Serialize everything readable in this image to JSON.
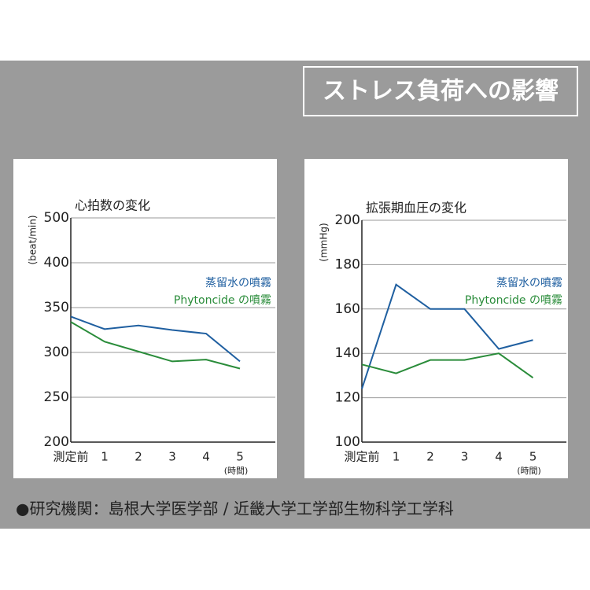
{
  "title": "ストレス負荷への影響",
  "footer": "●研究機関：島根大学医学部 / 近畿大学工学部生物科学工学科",
  "chart_data": [
    {
      "type": "line",
      "title": "心拍数の変化",
      "ylabel": "(beat/min)",
      "xlabel": "(時間)",
      "categories": [
        "測定前",
        "1",
        "2",
        "3",
        "4",
        "5"
      ],
      "ylim": [
        200,
        500
      ],
      "yticks": [
        200,
        250,
        300,
        350,
        400,
        500
      ],
      "grid": true,
      "legend": "upper right",
      "series": [
        {
          "name": "蒸留水の噴霧",
          "color": "#1f5fa0",
          "values": [
            340,
            326,
            330,
            325,
            321,
            290
          ]
        },
        {
          "name": "Phytoncide の噴霧",
          "color": "#2a8c3a",
          "values": [
            334,
            312,
            301,
            290,
            292,
            282
          ]
        }
      ]
    },
    {
      "type": "line",
      "title": "拡張期血圧の変化",
      "ylabel": "(mmHg)",
      "xlabel": "(時間)",
      "categories": [
        "測定前",
        "1",
        "2",
        "3",
        "4",
        "5"
      ],
      "ylim": [
        100,
        200
      ],
      "yticks": [
        100,
        120,
        140,
        160,
        180,
        200
      ],
      "grid": true,
      "legend": "upper right",
      "series": [
        {
          "name": "蒸留水の噴霧",
          "color": "#1f5fa0",
          "values": [
            124,
            171,
            160,
            160,
            142,
            146
          ]
        },
        {
          "name": "Phytoncide の噴霧",
          "color": "#2a8c3a",
          "values": [
            135,
            131,
            137,
            137,
            140,
            129
          ]
        }
      ]
    }
  ]
}
